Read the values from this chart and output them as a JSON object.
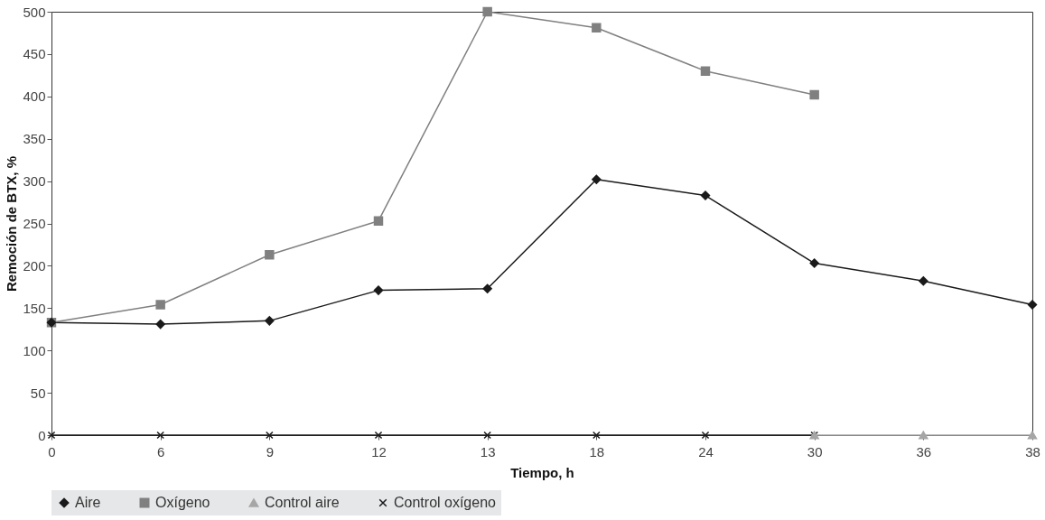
{
  "chart_data": {
    "type": "line",
    "xlabel": "Tiempo, h",
    "ylabel": "Remoción de BTX, %",
    "categories": [
      "0",
      "6",
      "9",
      "12",
      "13",
      "18",
      "24",
      "30",
      "36",
      "38"
    ],
    "ylim": [
      0,
      500
    ],
    "yticks": [
      0,
      50,
      100,
      150,
      200,
      250,
      300,
      350,
      400,
      450,
      500
    ],
    "grid": false,
    "legend": "bottom",
    "line_style": "solid",
    "series": [
      {
        "name": "Aire",
        "color": "#1a1a1a",
        "marker": "diamond",
        "values": [
          133,
          131,
          135,
          171,
          173,
          302,
          283,
          203,
          182,
          154
        ]
      },
      {
        "name": "Oxígeno",
        "color": "#808080",
        "marker": "square",
        "values": [
          133,
          154,
          213,
          253,
          500,
          481,
          430,
          402,
          null,
          null
        ]
      },
      {
        "name": "Control aire",
        "color": "#a6a6a6",
        "marker": "triangle",
        "values": [
          null,
          null,
          null,
          null,
          null,
          null,
          null,
          0,
          0,
          0
        ]
      },
      {
        "name": "Control oxígeno",
        "color": "#1a1a1a",
        "marker": "cross",
        "values": [
          0,
          0,
          0,
          0,
          0,
          0,
          0,
          0,
          null,
          null
        ]
      }
    ]
  }
}
